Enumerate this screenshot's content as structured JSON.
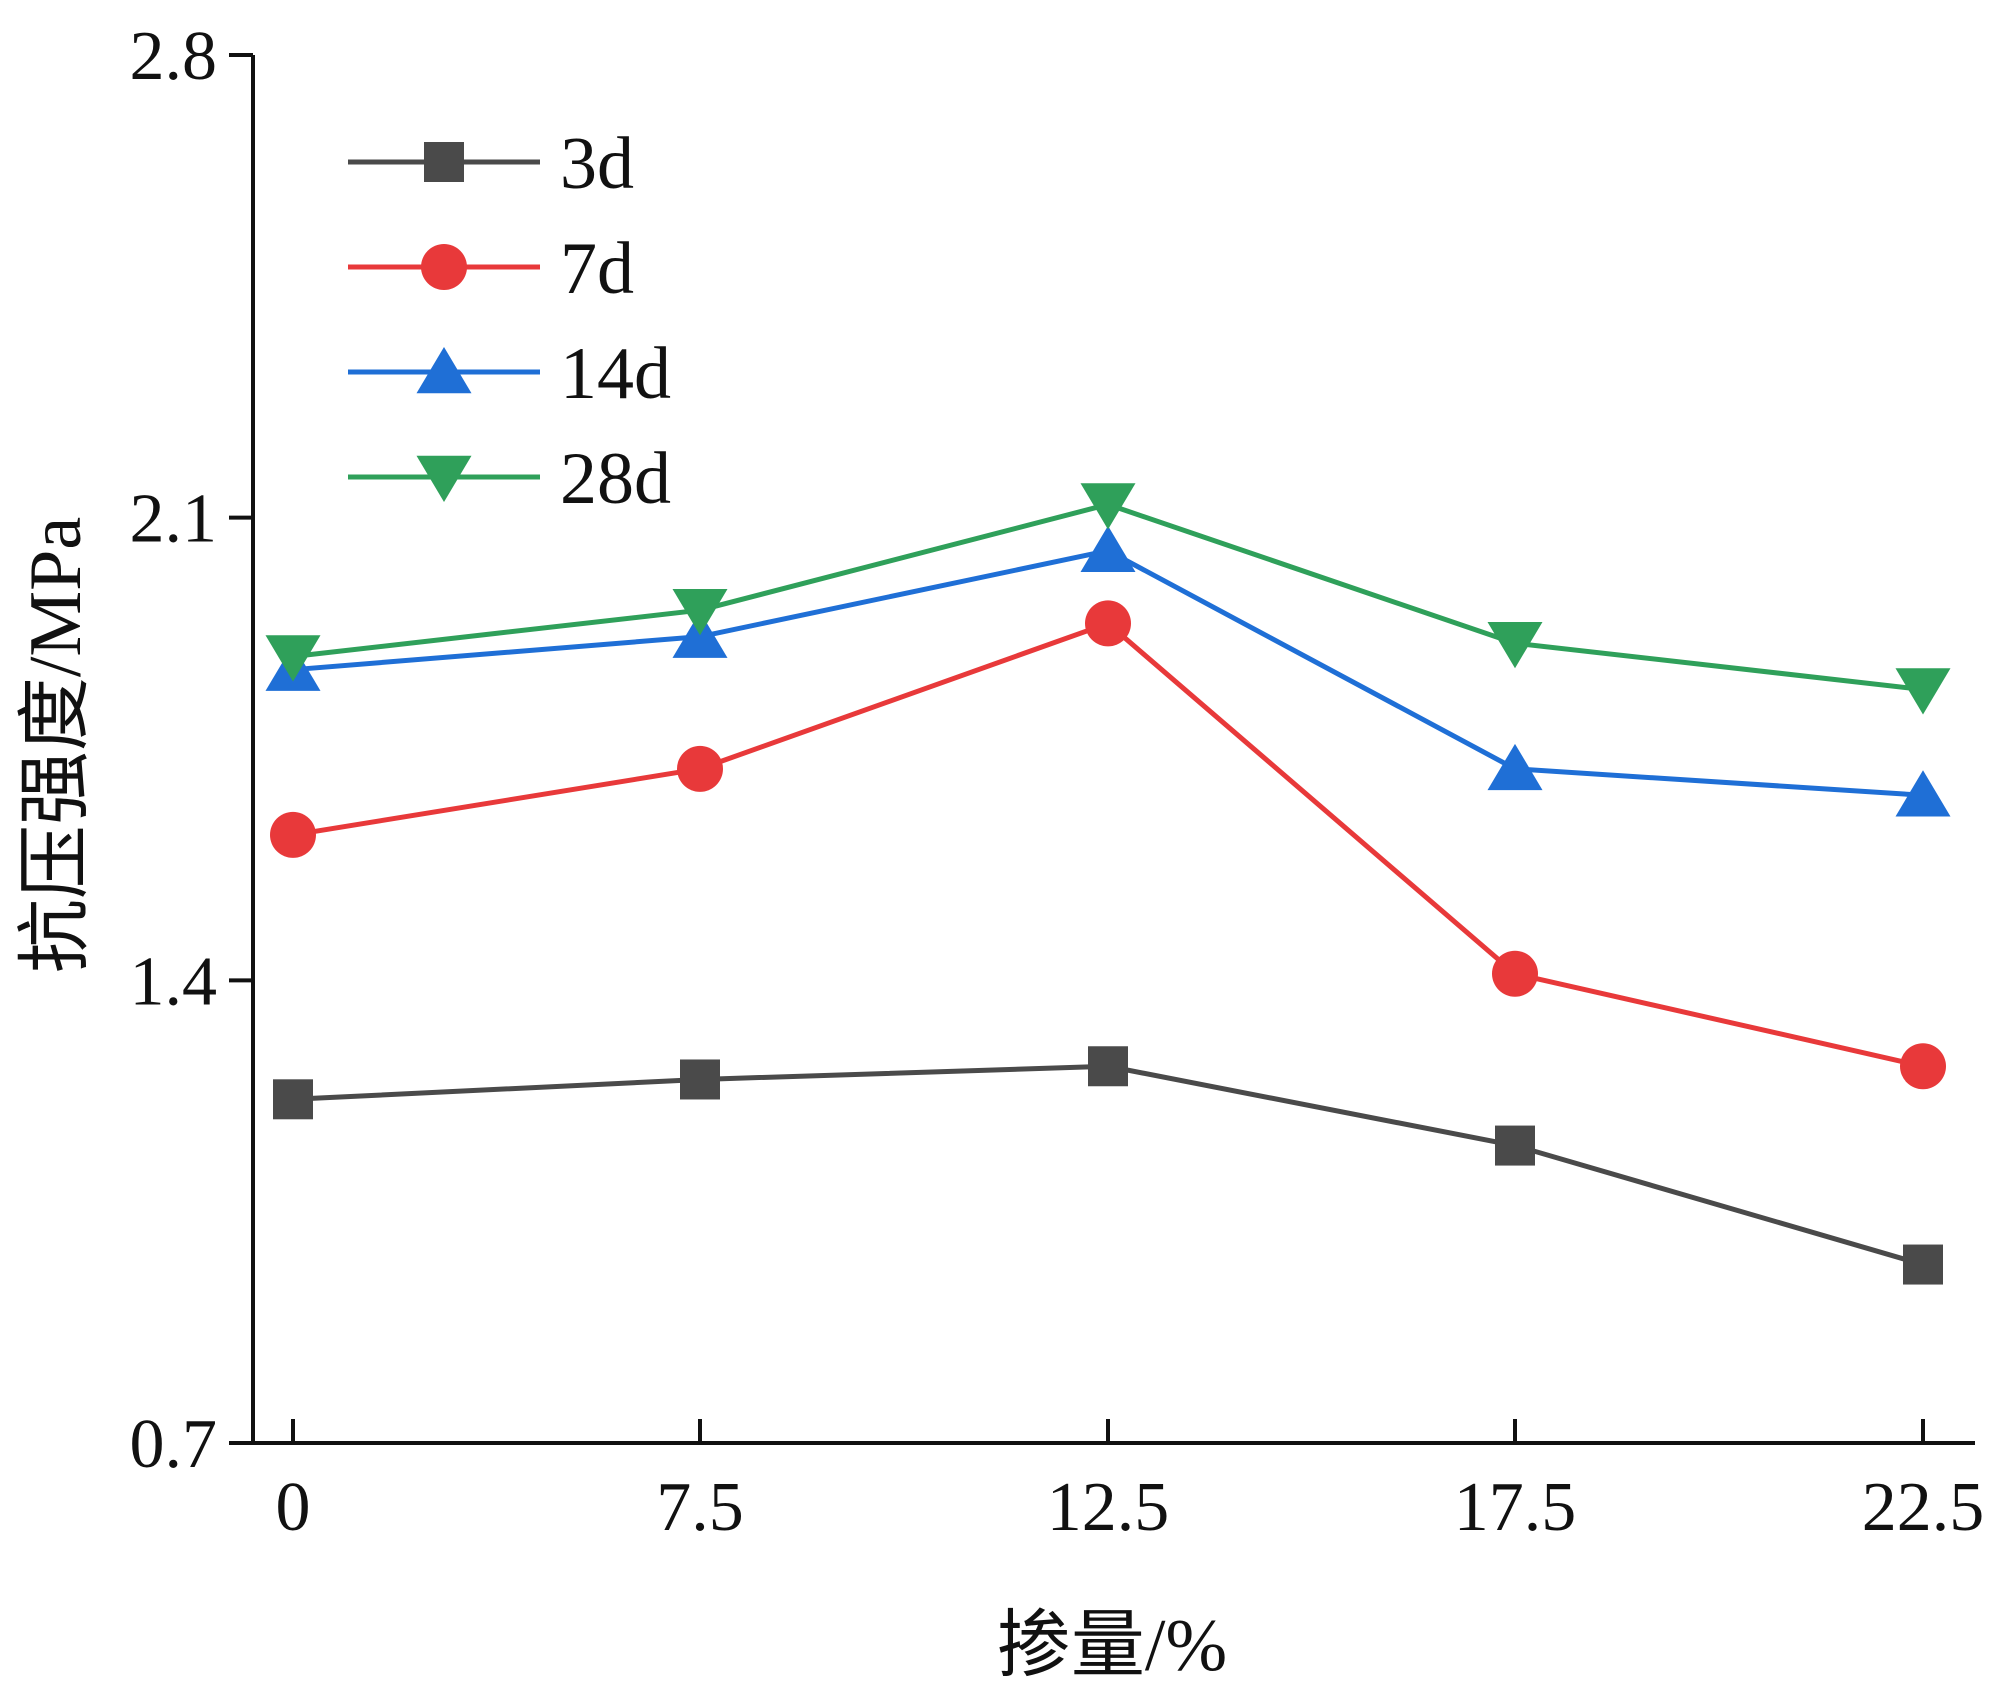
{
  "chart_data": {
    "type": "line",
    "title": "",
    "xlabel": "掺量/%",
    "ylabel": "抗压强度/MPa",
    "categories": [
      "0",
      "7.5",
      "12.5",
      "17.5",
      "22.5"
    ],
    "y_ticks": [
      "0.7",
      "1.4",
      "2.1",
      "2.8"
    ],
    "ylim": [
      0.7,
      2.8
    ],
    "grid": false,
    "legend_position": "top-left",
    "series": [
      {
        "name": "3d",
        "marker": "square",
        "color": "#4a4a4a",
        "values": [
          1.22,
          1.25,
          1.27,
          1.15,
          0.97
        ]
      },
      {
        "name": "7d",
        "marker": "circle",
        "color": "#e8393a",
        "values": [
          1.62,
          1.72,
          1.94,
          1.41,
          1.27
        ]
      },
      {
        "name": "14d",
        "marker": "triangle-up",
        "color": "#1f6fd6",
        "values": [
          1.87,
          1.92,
          2.05,
          1.72,
          1.68
        ]
      },
      {
        "name": "28d",
        "marker": "triangle-down",
        "color": "#2fa05a",
        "values": [
          1.89,
          1.96,
          2.12,
          1.91,
          1.84
        ]
      }
    ]
  }
}
